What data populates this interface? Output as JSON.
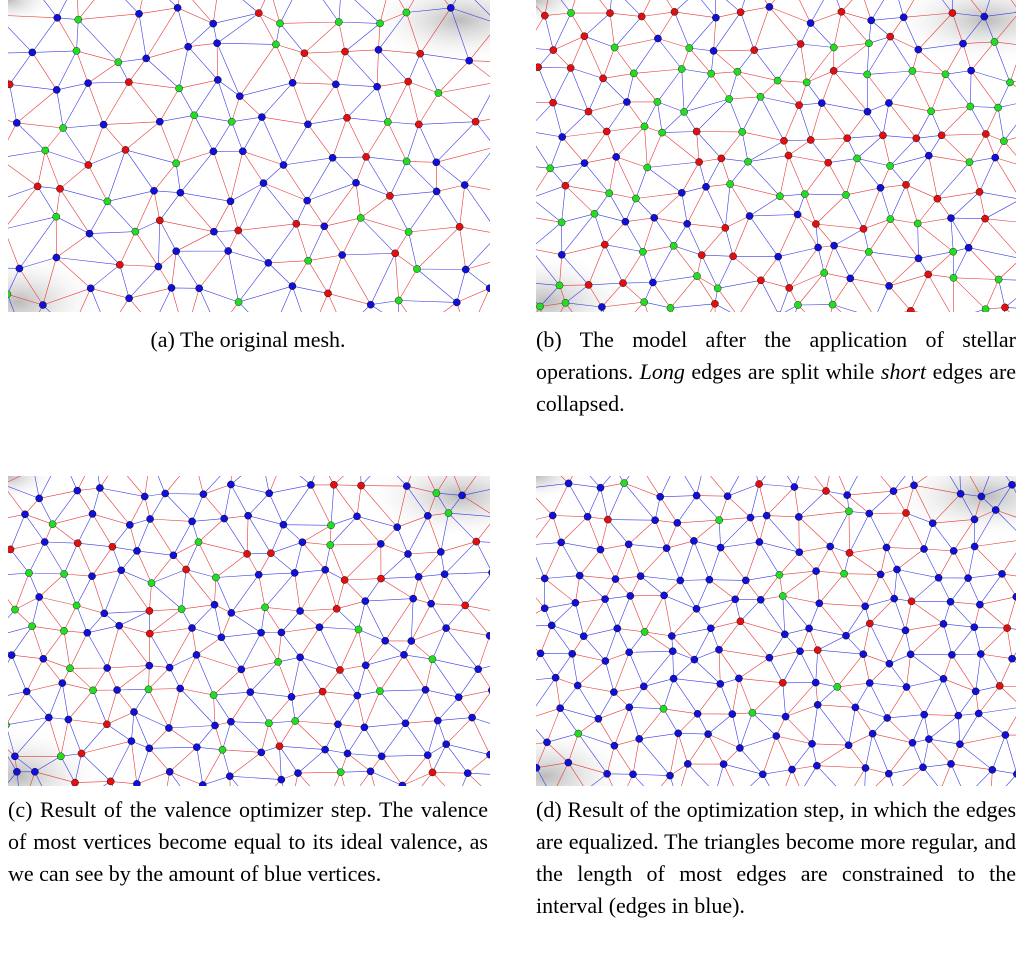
{
  "captions": [
    {
      "label": "(a)",
      "parts": [
        "The original mesh."
      ]
    },
    {
      "label": "(b)",
      "parts": [
        "The model after the application of stellar operations.",
        "Long",
        "edges are split while",
        "short",
        "edges are collapsed."
      ]
    },
    {
      "label": "(c)",
      "parts": [
        "Result of the valence optimizer step. The valence of most vertices become equal to its ideal valence, as we can see by the amount of blue vertices."
      ]
    },
    {
      "label": "(d)",
      "parts": [
        "Result of the optimization step, in which the edges are equalized. The triangles become more regular, and the length of most edges are constrained to the interval (edges in blue)."
      ]
    }
  ]
}
